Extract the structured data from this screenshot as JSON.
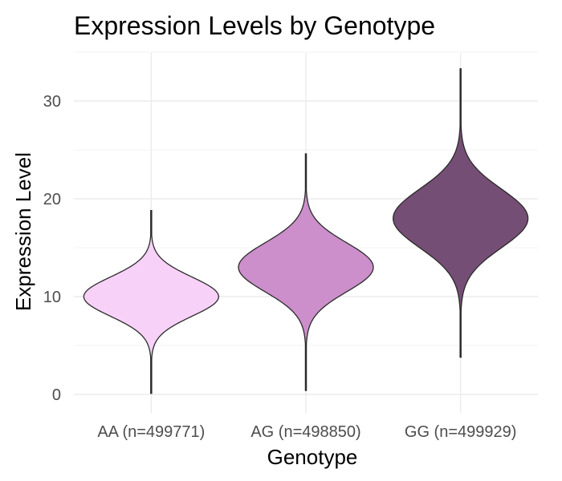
{
  "chart_data": {
    "type": "violin",
    "title": "Expression Levels by Genotype",
    "xlabel": "Genotype",
    "ylabel": "Expression Level",
    "ylim": [
      -2.5,
      35
    ],
    "yticks": [
      0,
      10,
      20,
      30
    ],
    "grid": true,
    "categories": [
      "AA (n=499771)",
      "AG (n=498850)",
      "GG (n=499929)"
    ],
    "series": [
      {
        "category": "AA (n=499771)",
        "center": 10,
        "sd": 2,
        "min": 0.1,
        "max": 18.8,
        "fill": "#f7d1f7"
      },
      {
        "category": "AG (n=498850)",
        "center": 13,
        "sd": 2.5,
        "min": 0.4,
        "max": 24.6,
        "fill": "#cc8fcb"
      },
      {
        "category": "GG (n=499929)",
        "center": 18,
        "sd": 3,
        "min": 3.8,
        "max": 33.3,
        "fill": "#754e75"
      }
    ]
  }
}
